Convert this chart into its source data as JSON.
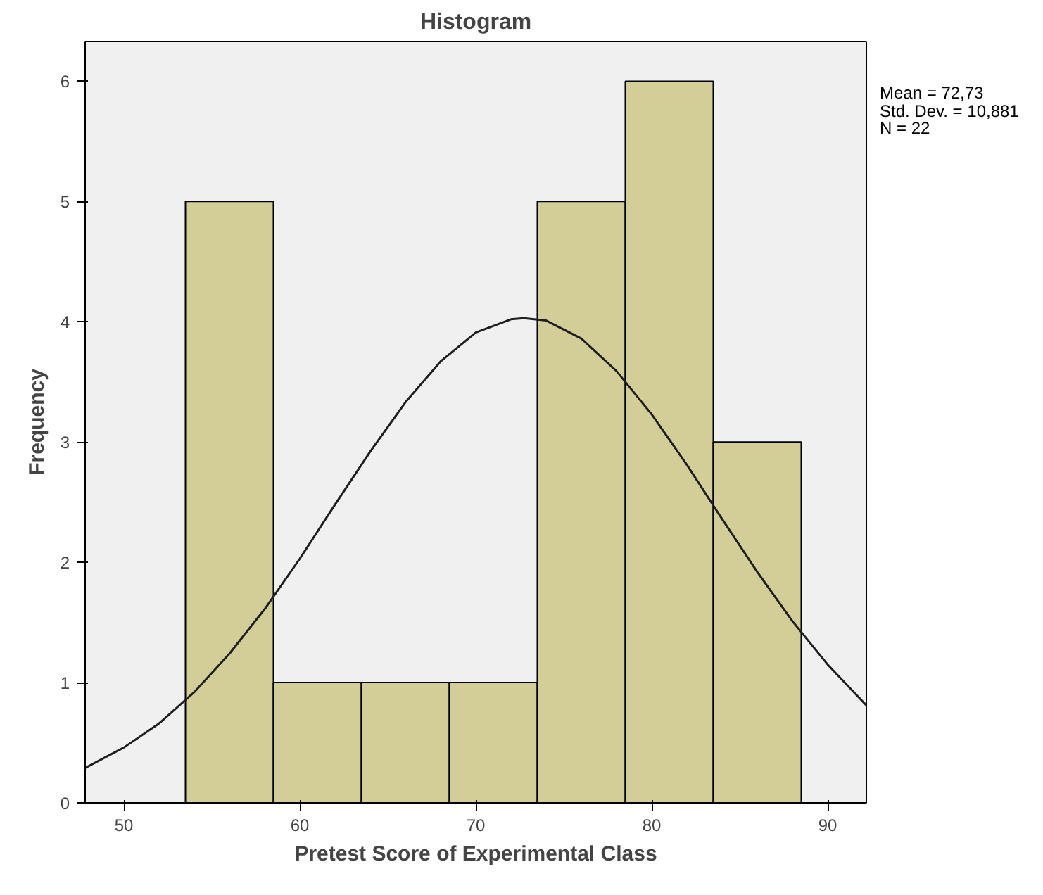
{
  "chart_data": {
    "type": "histogram",
    "title": "Histogram",
    "xlabel": "Pretest Score of Experimental Class",
    "ylabel": "Frequency",
    "bins": [
      53.5,
      58.5,
      63.5,
      68.5,
      73.5,
      78.5,
      83.5,
      88.5
    ],
    "values": [
      5,
      1,
      1,
      1,
      5,
      6,
      3
    ],
    "color": "#d3ce97",
    "series": [
      {
        "type": "line",
        "color": "#1e1e1e",
        "x": [
          47.8,
          50,
          52,
          54,
          56,
          58,
          60,
          62,
          64,
          66,
          68,
          70,
          72,
          72.73,
          74,
          76,
          78,
          80,
          82,
          84,
          86,
          88,
          90,
          92.2
        ],
        "values": [
          0.29,
          0.46,
          0.66,
          0.92,
          1.24,
          1.61,
          2.03,
          2.48,
          2.92,
          3.33,
          3.67,
          3.91,
          4.02,
          4.03,
          4.01,
          3.86,
          3.59,
          3.23,
          2.81,
          2.36,
          1.92,
          1.51,
          1.15,
          0.81
        ]
      }
    ],
    "xlim": [
      47.8,
      92.2
    ],
    "xticks": [
      50,
      60,
      70,
      80,
      90
    ],
    "ylim": [
      0,
      6.33
    ],
    "yticks": [
      0,
      1,
      2,
      3,
      4,
      5,
      6
    ],
    "grid": false,
    "annotations": [
      "Mean = 72,73",
      "Std. Dev. = 10,881",
      "N = 22"
    ]
  }
}
